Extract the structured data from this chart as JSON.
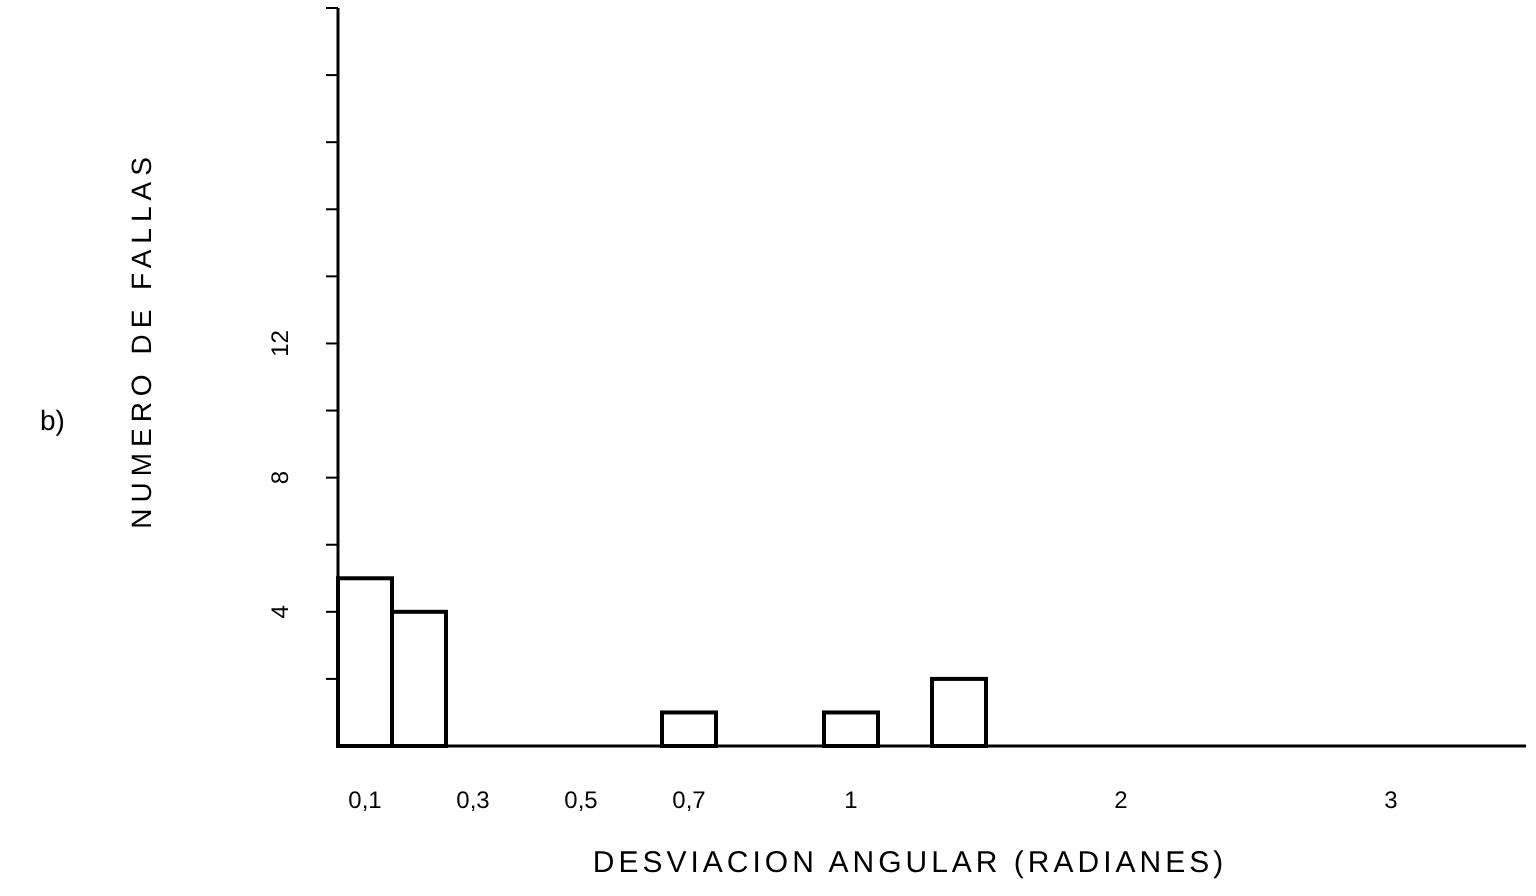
{
  "chart_data": {
    "type": "bar",
    "xlabel": "DESVIACION  ANGULAR (RADIANES)",
    "ylabel": "NUMERO DE FALLAS",
    "annotations": [
      "b)"
    ],
    "categories": [
      "0,1",
      null,
      "0,3",
      null,
      "0,5",
      null,
      "0,7",
      null,
      null,
      "1",
      null,
      null,
      null,
      null,
      "2",
      null,
      null,
      null,
      null,
      "3",
      null,
      null
    ],
    "values": [
      5,
      4,
      0,
      0,
      0,
      0,
      1,
      0,
      0,
      1,
      0,
      2,
      0,
      0,
      0,
      0,
      0,
      0,
      0,
      0,
      0,
      0
    ],
    "color": "#ffffff",
    "ylim": [
      0,
      22
    ],
    "yticks": [
      {
        "value": 2,
        "label": null
      },
      4,
      {
        "value": 6,
        "label": null
      },
      8,
      {
        "value": 10,
        "label": null
      },
      12,
      {
        "value": 14,
        "label": null
      },
      {
        "value": 16,
        "label": null
      },
      {
        "value": 18,
        "label": null
      },
      {
        "value": 20,
        "label": null
      },
      {
        "value": 22,
        "label": null
      }
    ]
  }
}
